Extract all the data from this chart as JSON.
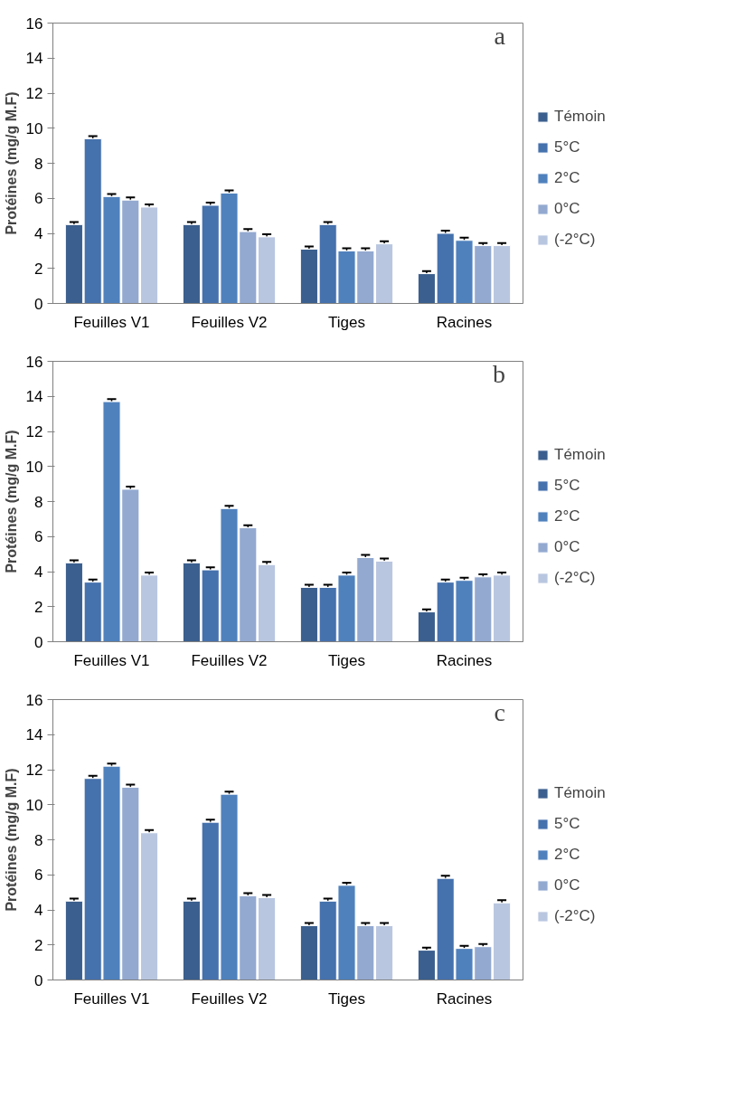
{
  "chart_data": [
    {
      "type": "bar",
      "ylabel": "Protéines (mg/g M.F)",
      "annotations": [
        "a"
      ],
      "categories": [
        "Feuilles V1",
        "Feuilles V2",
        "Tiges",
        "Racines"
      ],
      "ylim": [
        0,
        16
      ],
      "yticks": [
        0,
        2,
        4,
        6,
        8,
        10,
        12,
        14,
        16
      ],
      "grid": false,
      "legend": "right",
      "series": [
        {
          "name": "Témoin",
          "color": "#3b5f8e",
          "values": [
            4.5,
            4.5,
            3.1,
            1.7
          ],
          "errors": [
            0.15,
            0.15,
            0.15,
            0.15
          ]
        },
        {
          "name": "5°C",
          "color": "#4571ad",
          "values": [
            9.4,
            5.6,
            4.5,
            4.0
          ],
          "errors": [
            0.15,
            0.15,
            0.15,
            0.15
          ]
        },
        {
          "name": "2°C",
          "color": "#4f81bd",
          "values": [
            6.1,
            6.3,
            3.0,
            3.6
          ],
          "errors": [
            0.15,
            0.15,
            0.15,
            0.15
          ]
        },
        {
          "name": "0°C",
          "color": "#93a9d0",
          "values": [
            5.9,
            4.1,
            3.0,
            3.3
          ],
          "errors": [
            0.15,
            0.15,
            0.15,
            0.15
          ]
        },
        {
          "name": "(-2°C)",
          "color": "#b9c6e0",
          "values": [
            5.5,
            3.8,
            3.4,
            3.3
          ],
          "errors": [
            0.15,
            0.15,
            0.15,
            0.15
          ]
        }
      ]
    },
    {
      "type": "bar",
      "ylabel": "Protéines (mg/g M.F)",
      "annotations": [
        "b"
      ],
      "categories": [
        "Feuilles V1",
        "Feuilles V2",
        "Tiges",
        "Racines"
      ],
      "ylim": [
        0,
        16
      ],
      "yticks": [
        0,
        2,
        4,
        6,
        8,
        10,
        12,
        14,
        16
      ],
      "grid": false,
      "legend": "right",
      "series": [
        {
          "name": "Témoin",
          "color": "#3b5f8e",
          "values": [
            4.5,
            4.5,
            3.1,
            1.7
          ],
          "errors": [
            0.15,
            0.15,
            0.15,
            0.15
          ]
        },
        {
          "name": "5°C",
          "color": "#4571ad",
          "values": [
            3.4,
            4.1,
            3.1,
            3.4
          ],
          "errors": [
            0.15,
            0.15,
            0.15,
            0.15
          ]
        },
        {
          "name": "2°C",
          "color": "#4f81bd",
          "values": [
            13.7,
            7.6,
            3.8,
            3.5
          ],
          "errors": [
            0.15,
            0.15,
            0.15,
            0.15
          ]
        },
        {
          "name": "0°C",
          "color": "#93a9d0",
          "values": [
            8.7,
            6.5,
            4.8,
            3.7
          ],
          "errors": [
            0.15,
            0.15,
            0.15,
            0.15
          ]
        },
        {
          "name": "(-2°C)",
          "color": "#b9c6e0",
          "values": [
            3.8,
            4.4,
            4.6,
            3.8
          ],
          "errors": [
            0.15,
            0.15,
            0.15,
            0.15
          ]
        }
      ]
    },
    {
      "type": "bar",
      "ylabel": "Protéines (mg/g M.F)",
      "annotations": [
        "c"
      ],
      "categories": [
        "Feuilles V1",
        "Feuilles V2",
        "Tiges",
        "Racines"
      ],
      "ylim": [
        0,
        16
      ],
      "yticks": [
        0,
        2,
        4,
        6,
        8,
        10,
        12,
        14,
        16
      ],
      "grid": false,
      "legend": "right",
      "series": [
        {
          "name": "Témoin",
          "color": "#3b5f8e",
          "values": [
            4.5,
            4.5,
            3.1,
            1.7
          ],
          "errors": [
            0.15,
            0.15,
            0.15,
            0.15
          ]
        },
        {
          "name": "5°C",
          "color": "#4571ad",
          "values": [
            11.5,
            9.0,
            4.5,
            5.8
          ],
          "errors": [
            0.15,
            0.15,
            0.15,
            0.15
          ]
        },
        {
          "name": "2°C",
          "color": "#4f81bd",
          "values": [
            12.2,
            10.6,
            5.4,
            1.8
          ],
          "errors": [
            0.15,
            0.15,
            0.15,
            0.15
          ]
        },
        {
          "name": "0°C",
          "color": "#93a9d0",
          "values": [
            11.0,
            4.8,
            3.1,
            1.9
          ],
          "errors": [
            0.15,
            0.15,
            0.15,
            0.15
          ]
        },
        {
          "name": "(-2°C)",
          "color": "#b9c6e0",
          "values": [
            8.4,
            4.7,
            3.1,
            4.4
          ],
          "errors": [
            0.15,
            0.15,
            0.15,
            0.15
          ]
        }
      ]
    }
  ]
}
